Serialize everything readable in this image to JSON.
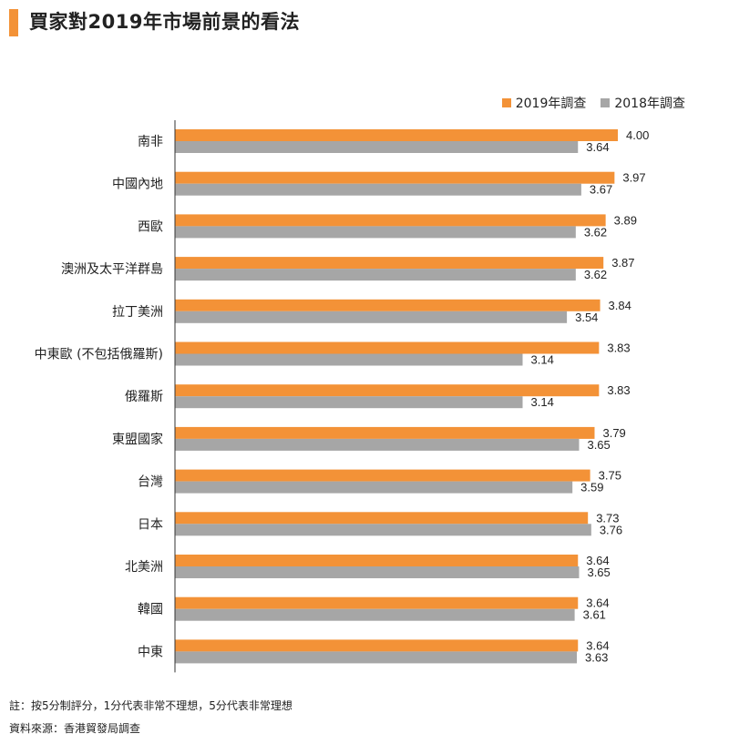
{
  "title": "買家對2019年市場前景的看法",
  "notes": {
    "scale": "註：按5分制評分，1分代表非常不理想，5分代表非常理想",
    "source": "資料來源：香港貿發局調查"
  },
  "colors": {
    "accent": "#f39237",
    "series_2019": "#f39237",
    "series_2018": "#a6a6a6"
  },
  "chart_data": {
    "type": "bar",
    "orientation": "horizontal",
    "categories": [
      "南非",
      "中國內地",
      "西歐",
      "澳洲及太平洋群島",
      "拉丁美洲",
      "中東歐 (不包括俄羅斯)",
      "俄羅斯",
      "東盟國家",
      "台灣",
      "日本",
      "北美洲",
      "韓國",
      "中東"
    ],
    "series": [
      {
        "name": "2019年調查",
        "color": "#f39237",
        "values": [
          4.0,
          3.97,
          3.89,
          3.87,
          3.84,
          3.83,
          3.83,
          3.79,
          3.75,
          3.73,
          3.64,
          3.64,
          3.64
        ],
        "labels": [
          "4.00",
          "3.97",
          "3.89",
          "3.87",
          "3.84",
          "3.83",
          "3.83",
          "3.79",
          "3.75",
          "3.73",
          "3.64",
          "3.64",
          "3.64"
        ]
      },
      {
        "name": "2018年調查",
        "color": "#a6a6a6",
        "values": [
          3.64,
          3.67,
          3.62,
          3.62,
          3.54,
          3.14,
          3.14,
          3.65,
          3.59,
          3.76,
          3.65,
          3.61,
          3.63
        ],
        "labels": [
          "3.64",
          "3.67",
          "3.62",
          "3.62",
          "3.54",
          "3.14",
          "3.14",
          "3.65",
          "3.59",
          "3.76",
          "3.65",
          "3.61",
          "3.63"
        ]
      }
    ],
    "legend_position": "top-right",
    "grid": false,
    "data_labels": true
  }
}
